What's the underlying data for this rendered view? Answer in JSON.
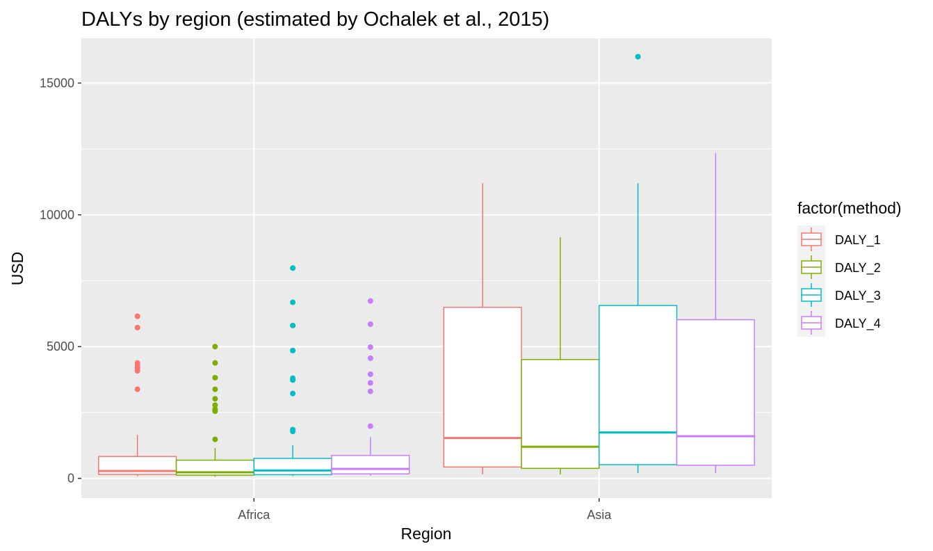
{
  "chart_data": {
    "type": "boxplot",
    "title": "DALYs by region (estimated by Ochalek et al., 2015)",
    "xlabel": "Region",
    "ylabel": "USD",
    "categories": [
      "Africa",
      "Asia"
    ],
    "ylim": [
      -750,
      16700
    ],
    "yticks": [
      0,
      5000,
      10000,
      15000
    ],
    "grid": true,
    "legend": {
      "title": "factor(method)",
      "position": "right"
    },
    "series": [
      {
        "name": "DALY_1",
        "color": "#F8766D",
        "boxes": [
          {
            "min": 80,
            "q1": 150,
            "median": 280,
            "q3": 830,
            "max": 1650,
            "outliers": [
              3380,
              4080,
              4180,
              4280,
              4380,
              5720,
              6150
            ]
          },
          {
            "min": 150,
            "q1": 430,
            "median": 1530,
            "q3": 6490,
            "max": 11200,
            "outliers": []
          }
        ]
      },
      {
        "name": "DALY_2",
        "color": "#7CAE00",
        "boxes": [
          {
            "min": 60,
            "q1": 120,
            "median": 230,
            "q3": 690,
            "max": 1150,
            "outliers": [
              1480,
              2550,
              2620,
              2780,
              3020,
              3380,
              3820,
              4380,
              5000
            ]
          },
          {
            "min": 150,
            "q1": 380,
            "median": 1200,
            "q3": 4510,
            "max": 9150,
            "outliers": []
          }
        ]
      },
      {
        "name": "DALY_3",
        "color": "#00BFC4",
        "boxes": [
          {
            "min": 90,
            "q1": 140,
            "median": 300,
            "q3": 760,
            "max": 1250,
            "outliers": [
              1780,
              1850,
              3220,
              3730,
              3800,
              4850,
              5800,
              6680,
              7980
            ]
          },
          {
            "min": 200,
            "q1": 520,
            "median": 1740,
            "q3": 6560,
            "max": 11200,
            "outliers": [
              16000
            ]
          }
        ]
      },
      {
        "name": "DALY_4",
        "color": "#C77CFF",
        "boxes": [
          {
            "min": 100,
            "q1": 170,
            "median": 360,
            "q3": 870,
            "max": 1560,
            "outliers": [
              1980,
              3300,
              3620,
              3950,
              4560,
              4980,
              5850,
              6730
            ]
          },
          {
            "min": 200,
            "q1": 500,
            "median": 1600,
            "q3": 6020,
            "max": 12350,
            "outliers": []
          }
        ]
      }
    ]
  }
}
